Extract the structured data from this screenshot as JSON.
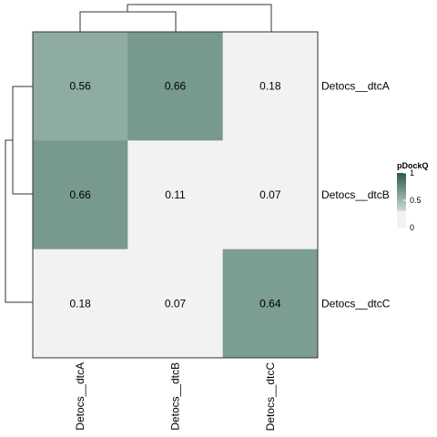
{
  "chart_data": {
    "type": "heatmap",
    "title": "",
    "rows": [
      "Detocs__dtcA",
      "Detocs__dtcB",
      "Detocs__dtcC"
    ],
    "columns": [
      "Detocs__dtcA",
      "Detocs__dtcB",
      "Detocs__dtcC"
    ],
    "values": [
      [
        0.56,
        0.66,
        0.18
      ],
      [
        0.66,
        0.11,
        0.07
      ],
      [
        0.18,
        0.07,
        0.64
      ]
    ],
    "value_labels": [
      [
        "0.56",
        "0.66",
        "0.18"
      ],
      [
        "0.66",
        "0.11",
        "0.07"
      ],
      [
        "0.18",
        "0.07",
        "0.64"
      ]
    ],
    "legend": {
      "title": "pDockQ",
      "ticks": [
        1,
        0.5,
        0
      ],
      "tick_labels": [
        "1",
        "0.5",
        "0"
      ],
      "range": [
        0,
        1
      ],
      "placement": "right"
    },
    "color_scale": {
      "low_color": "#f2f2f2",
      "high_color": "#2b5a4b",
      "cutoff": 0.3,
      "below_cutoff_color": "#f2f2f2"
    },
    "row_dendrogram": true,
    "column_dendrogram": true
  }
}
